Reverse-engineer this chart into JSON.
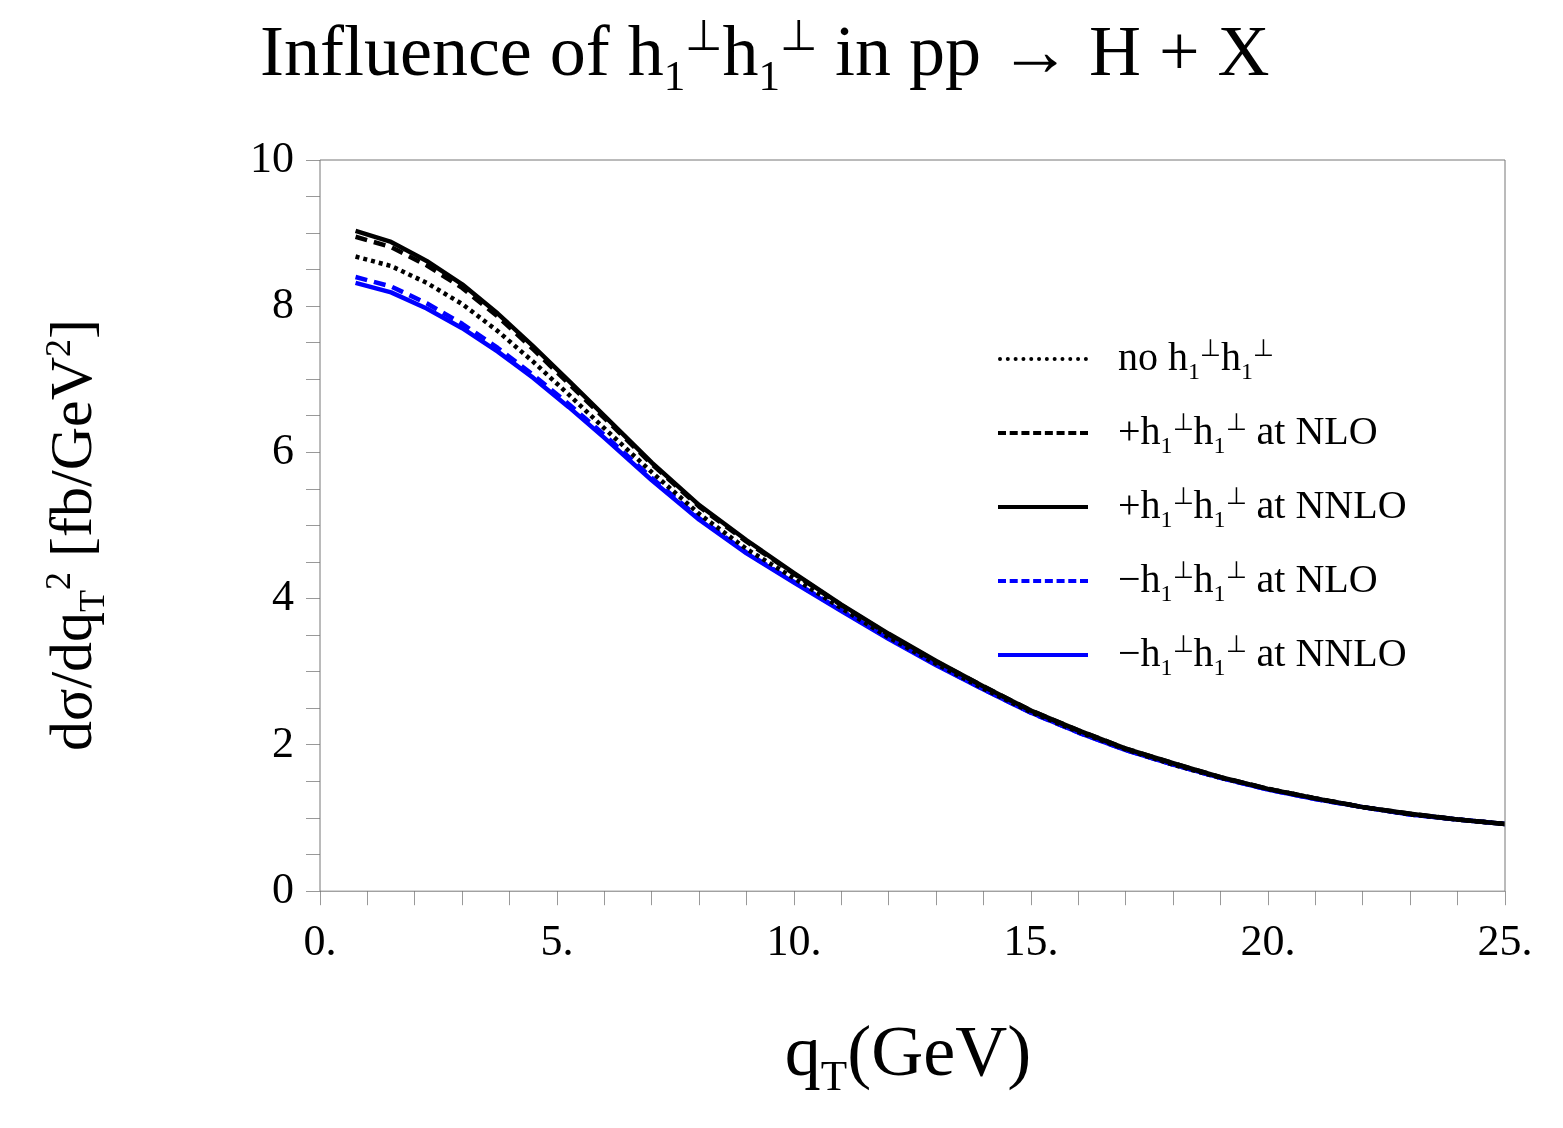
{
  "chart_data": {
    "type": "line",
    "title": "Influence of h$_{1}$$^{⊥}$h$_{1}$$^{⊥}$ in pp → H + X",
    "xlabel": "q$_{T}$(GeV)",
    "ylabel": "dσ/dq$_{T}$$^{2}$ [fb/GeV$^{2}$]",
    "x": [
      0.75,
      1.5,
      2.25,
      3,
      3.75,
      4.5,
      5.25,
      6,
      7,
      8,
      9,
      10,
      11,
      12,
      13,
      14,
      15,
      16,
      17,
      18,
      19,
      20,
      21,
      22,
      23,
      24,
      25
    ],
    "series": [
      {
        "name": "no h$_{1}$$^{⊥}$h$_{1}$$^{⊥}$",
        "color": "#000000",
        "line_style": "dotted",
        "values": [
          8.68,
          8.55,
          8.32,
          8.03,
          7.66,
          7.24,
          6.79,
          6.33,
          5.73,
          5.16,
          4.68,
          4.28,
          3.87,
          3.47,
          3.11,
          2.77,
          2.45,
          2.18,
          1.94,
          1.73,
          1.55,
          1.4,
          1.27,
          1.15,
          1.05,
          0.98,
          0.92
        ]
      },
      {
        "name": "+h$_{1}$$^{⊥}$h$_{1}$$^{⊥}$ at NLO",
        "color": "#000000",
        "line_style": "dashed",
        "values": [
          8.95,
          8.81,
          8.56,
          8.25,
          7.86,
          7.41,
          6.94,
          6.47,
          5.84,
          5.26,
          4.78,
          4.34,
          3.91,
          3.51,
          3.14,
          2.8,
          2.47,
          2.2,
          1.95,
          1.75,
          1.56,
          1.4,
          1.27,
          1.15,
          1.06,
          0.98,
          0.92
        ]
      },
      {
        "name": "+h$_{1}$$^{⊥}$h$_{1}$$^{⊥}$ at NNLO",
        "color": "#000000",
        "line_style": "solid",
        "values": [
          9.03,
          8.88,
          8.62,
          8.3,
          7.9,
          7.45,
          6.98,
          6.5,
          5.86,
          5.28,
          4.8,
          4.35,
          3.92,
          3.52,
          3.15,
          2.8,
          2.47,
          2.2,
          1.95,
          1.75,
          1.56,
          1.4,
          1.27,
          1.15,
          1.06,
          0.98,
          0.92
        ]
      },
      {
        "name": "−h$_{1}$$^{⊥}$h$_{1}$$^{⊥}$ at NLO",
        "color": "#0000ff",
        "line_style": "dashed",
        "values": [
          8.4,
          8.27,
          8.04,
          7.76,
          7.43,
          7.06,
          6.66,
          6.24,
          5.65,
          5.1,
          4.63,
          4.23,
          3.84,
          3.46,
          3.1,
          2.76,
          2.44,
          2.17,
          1.93,
          1.73,
          1.55,
          1.39,
          1.26,
          1.15,
          1.05,
          0.98,
          0.92
        ]
      },
      {
        "name": "−h$_{1}$$^{⊥}$h$_{1}$$^{⊥}$ at NNLO",
        "color": "#0000ff",
        "line_style": "solid",
        "values": [
          8.32,
          8.19,
          7.97,
          7.7,
          7.38,
          7.02,
          6.62,
          6.2,
          5.62,
          5.08,
          4.62,
          4.22,
          3.83,
          3.45,
          3.09,
          2.76,
          2.44,
          2.17,
          1.93,
          1.73,
          1.55,
          1.39,
          1.26,
          1.15,
          1.05,
          0.98,
          0.92
        ]
      }
    ],
    "xlim": [
      0,
      25
    ],
    "xticks": [
      {
        "value": 0,
        "label": "0."
      },
      {
        "value": 1,
        "label": null
      },
      {
        "value": 2,
        "label": null
      },
      {
        "value": 3,
        "label": null
      },
      {
        "value": 4,
        "label": null
      },
      {
        "value": 5,
        "label": "5."
      },
      {
        "value": 6,
        "label": null
      },
      {
        "value": 7,
        "label": null
      },
      {
        "value": 8,
        "label": null
      },
      {
        "value": 9,
        "label": null
      },
      {
        "value": 10,
        "label": "10."
      },
      {
        "value": 11,
        "label": null
      },
      {
        "value": 12,
        "label": null
      },
      {
        "value": 13,
        "label": null
      },
      {
        "value": 14,
        "label": null
      },
      {
        "value": 15,
        "label": "15."
      },
      {
        "value": 16,
        "label": null
      },
      {
        "value": 17,
        "label": null
      },
      {
        "value": 18,
        "label": null
      },
      {
        "value": 19,
        "label": null
      },
      {
        "value": 20,
        "label": "20."
      },
      {
        "value": 21,
        "label": null
      },
      {
        "value": 22,
        "label": null
      },
      {
        "value": 23,
        "label": null
      },
      {
        "value": 24,
        "label": null
      },
      {
        "value": 25,
        "label": "25."
      }
    ],
    "ylim": [
      0,
      10
    ],
    "yticks": [
      0,
      {
        "value": 0.5,
        "label": null
      },
      {
        "value": 1,
        "label": null
      },
      {
        "value": 1.5,
        "label": null
      },
      2,
      {
        "value": 2.5,
        "label": null
      },
      {
        "value": 3,
        "label": null
      },
      {
        "value": 3.5,
        "label": null
      },
      4,
      {
        "value": 4.5,
        "label": null
      },
      {
        "value": 5,
        "label": null
      },
      {
        "value": 5.5,
        "label": null
      },
      6,
      {
        "value": 6.5,
        "label": null
      },
      {
        "value": 7,
        "label": null
      },
      {
        "value": 7.5,
        "label": null
      },
      8,
      {
        "value": 8.5,
        "label": null
      },
      {
        "value": 9,
        "label": null
      },
      {
        "value": 9.5,
        "label": null
      },
      10
    ],
    "grid": false,
    "legend": "right",
    "marker": "none"
  }
}
